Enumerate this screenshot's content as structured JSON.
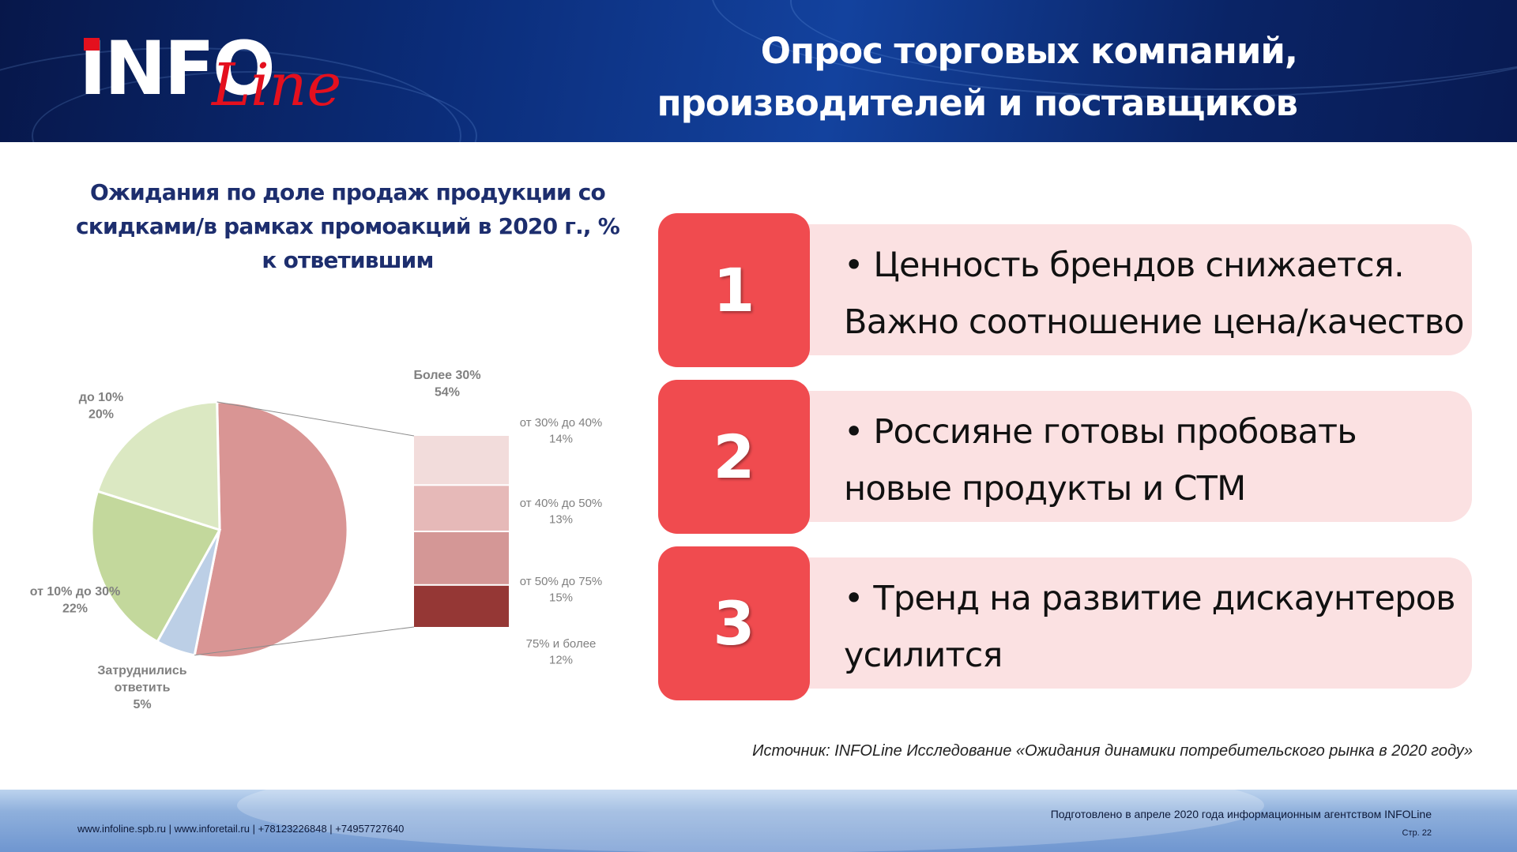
{
  "header": {
    "logo_info": "INFO",
    "logo_line": "Line",
    "title_line1": "Опрос торговых компаний,",
    "title_line2": "производителей и поставщиков"
  },
  "chart": {
    "title_line1": "Ожидания по доле продаж продукции со",
    "title_line2": "скидками/в рамках промоакций в 2020 г., %",
    "title_line3": "к ответившим"
  },
  "chart_data": {
    "type": "pie",
    "title": "Ожидания по доле продаж продукции со скидками/в рамках промоакций в 2020 г., % к ответившим",
    "slices": [
      {
        "label": "Более 30%",
        "value": 54,
        "color": "#d99594"
      },
      {
        "label": "до 10%",
        "value": 20,
        "color": "#dbe8c2"
      },
      {
        "label": "от 10% до 30%",
        "value": 22,
        "color": "#c3d89c"
      },
      {
        "label": "Затруднились ответить",
        "value": 5,
        "color": "#bccfe6"
      }
    ],
    "breakdown": {
      "of": "Более 30%",
      "type": "stacked-bar",
      "items": [
        {
          "label": "от 30% до 40%",
          "value": 14,
          "color": "#f2dcdb"
        },
        {
          "label": "от 40% до 50%",
          "value": 13,
          "color": "#e6b9b8"
        },
        {
          "label": "от 50% до 75%",
          "value": 15,
          "color": "#d49796"
        },
        {
          "label": "75% и более",
          "value": 12,
          "color": "#953735"
        }
      ]
    }
  },
  "reasons": [
    {
      "number": "1",
      "line1": "• Ценность брендов снижается.",
      "line2": "Важно соотношение цена/качество"
    },
    {
      "number": "2",
      "line1": "• Россияне готовы пробовать",
      "line2": "новые продукты и СТМ"
    },
    {
      "number": "3",
      "line1": "• Тренд на развитие дискаунтеров",
      "line2": "усилится"
    }
  ],
  "source": "Источник: INFOLine Исследование «Ожидания динамики потребительского рынка в 2020 году»",
  "footer": {
    "links": "www.infoline.spb.ru | www.inforetail.ru | +78123226848 | +74957727640",
    "prepared": "Подготовлено в апреле 2020 года информационным агентством INFOLine",
    "page": "Стр. 22"
  },
  "colors": {
    "header_bg": "#0b2d7a",
    "accent_red": "#f04b4f",
    "reason_bg": "#fbe1e2",
    "title_blue": "#1d2e6e"
  }
}
